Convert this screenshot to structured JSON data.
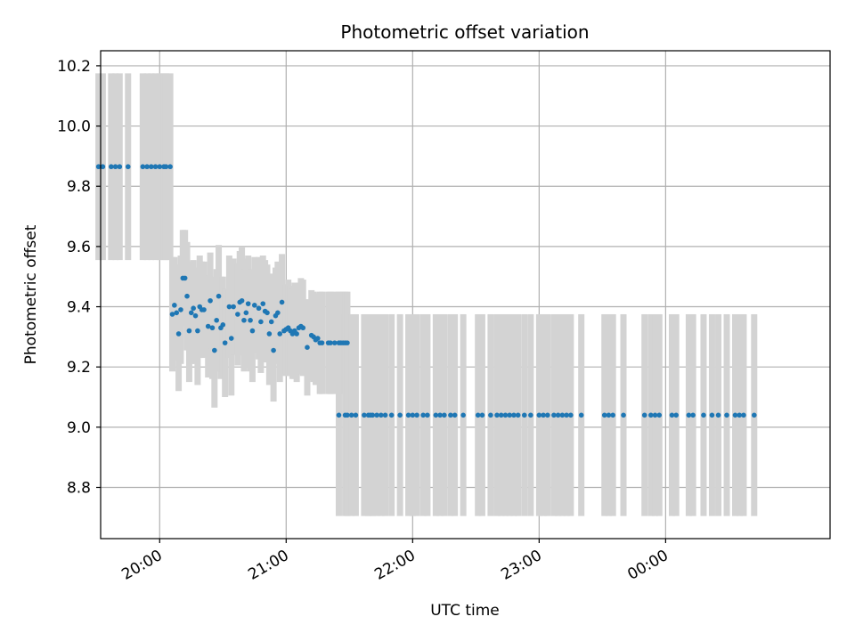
{
  "chart_data": {
    "type": "scatter",
    "title": "Photometric offset variation",
    "xlabel": "UTC time",
    "ylabel": "Photometric offset",
    "x_unit": "UTC time (h:mm)",
    "x_ticks": [
      "20:00",
      "21:00",
      "22:00",
      "23:00",
      "00:00"
    ],
    "y_ticks": [
      "8.8",
      "9.0",
      "9.2",
      "9.4",
      "9.6",
      "9.8",
      "10.0",
      "10.2"
    ],
    "xlim": [
      "19:32",
      "25:18"
    ],
    "ylim": [
      8.63,
      10.25
    ],
    "grid": true,
    "colors": {
      "marker": "#1f77b4",
      "errorbar": "#d3d3d3",
      "grid": "#b0b0b0"
    },
    "points": [
      {
        "x": "19:31",
        "y": 9.865,
        "err": 0.31
      },
      {
        "x": "19:33",
        "y": 9.865,
        "err": 0.31
      },
      {
        "x": "19:37",
        "y": 9.865,
        "err": 0.31
      },
      {
        "x": "19:39",
        "y": 9.865,
        "err": 0.31
      },
      {
        "x": "19:41",
        "y": 9.865,
        "err": 0.31
      },
      {
        "x": "19:45",
        "y": 9.865,
        "err": 0.31
      },
      {
        "x": "19:52",
        "y": 9.865,
        "err": 0.31
      },
      {
        "x": "19:54",
        "y": 9.865,
        "err": 0.31
      },
      {
        "x": "19:56",
        "y": 9.865,
        "err": 0.31
      },
      {
        "x": "19:58",
        "y": 9.865,
        "err": 0.31
      },
      {
        "x": "20:00",
        "y": 9.865,
        "err": 0.31
      },
      {
        "x": "20:02",
        "y": 9.865,
        "err": 0.31
      },
      {
        "x": "20:03",
        "y": 9.865,
        "err": 0.31
      },
      {
        "x": "20:05",
        "y": 9.865,
        "err": 0.31
      },
      {
        "x": "20:06",
        "y": 9.375,
        "err": 0.19
      },
      {
        "x": "20:07",
        "y": 9.405,
        "err": 0.16
      },
      {
        "x": "20:08",
        "y": 9.38,
        "err": 0.16
      },
      {
        "x": "20:09",
        "y": 9.31,
        "err": 0.19
      },
      {
        "x": "20:10",
        "y": 9.39,
        "err": 0.18
      },
      {
        "x": "20:11",
        "y": 9.495,
        "err": 0.16
      },
      {
        "x": "20:12",
        "y": 9.495,
        "err": 0.16
      },
      {
        "x": "20:13",
        "y": 9.435,
        "err": 0.18
      },
      {
        "x": "20:14",
        "y": 9.32,
        "err": 0.17
      },
      {
        "x": "20:15",
        "y": 9.38,
        "err": 0.17
      },
      {
        "x": "20:16",
        "y": 9.395,
        "err": 0.16
      },
      {
        "x": "20:17",
        "y": 9.37,
        "err": 0.16
      },
      {
        "x": "20:18",
        "y": 9.32,
        "err": 0.18
      },
      {
        "x": "20:19",
        "y": 9.4,
        "err": 0.17
      },
      {
        "x": "20:20",
        "y": 9.39,
        "err": 0.16
      },
      {
        "x": "20:21",
        "y": 9.39,
        "err": 0.16
      },
      {
        "x": "20:23",
        "y": 9.335,
        "err": 0.17
      },
      {
        "x": "20:24",
        "y": 9.42,
        "err": 0.16
      },
      {
        "x": "20:25",
        "y": 9.33,
        "err": 0.17
      },
      {
        "x": "20:26",
        "y": 9.255,
        "err": 0.19
      },
      {
        "x": "20:27",
        "y": 9.355,
        "err": 0.17
      },
      {
        "x": "20:28",
        "y": 9.435,
        "err": 0.17
      },
      {
        "x": "20:29",
        "y": 9.33,
        "err": 0.17
      },
      {
        "x": "20:30",
        "y": 9.34,
        "err": 0.16
      },
      {
        "x": "20:31",
        "y": 9.28,
        "err": 0.18
      },
      {
        "x": "20:33",
        "y": 9.4,
        "err": 0.17
      },
      {
        "x": "20:34",
        "y": 9.295,
        "err": 0.19
      },
      {
        "x": "20:35",
        "y": 9.4,
        "err": 0.16
      },
      {
        "x": "20:37",
        "y": 9.375,
        "err": 0.17
      },
      {
        "x": "20:38",
        "y": 9.415,
        "err": 0.17
      },
      {
        "x": "20:39",
        "y": 9.42,
        "err": 0.18
      },
      {
        "x": "20:40",
        "y": 9.355,
        "err": 0.17
      },
      {
        "x": "20:41",
        "y": 9.38,
        "err": 0.18
      },
      {
        "x": "20:42",
        "y": 9.41,
        "err": 0.16
      },
      {
        "x": "20:43",
        "y": 9.355,
        "err": 0.17
      },
      {
        "x": "20:44",
        "y": 9.32,
        "err": 0.17
      },
      {
        "x": "20:45",
        "y": 9.405,
        "err": 0.16
      },
      {
        "x": "20:47",
        "y": 9.395,
        "err": 0.17
      },
      {
        "x": "20:48",
        "y": 9.35,
        "err": 0.17
      },
      {
        "x": "20:49",
        "y": 9.41,
        "err": 0.16
      },
      {
        "x": "20:50",
        "y": 9.385,
        "err": 0.17
      },
      {
        "x": "20:51",
        "y": 9.38,
        "err": 0.16
      },
      {
        "x": "20:52",
        "y": 9.31,
        "err": 0.17
      },
      {
        "x": "20:53",
        "y": 9.35,
        "err": 0.16
      },
      {
        "x": "20:54",
        "y": 9.255,
        "err": 0.17
      },
      {
        "x": "20:55",
        "y": 9.37,
        "err": 0.16
      },
      {
        "x": "20:56",
        "y": 9.38,
        "err": 0.17
      },
      {
        "x": "20:57",
        "y": 9.31,
        "err": 0.16
      },
      {
        "x": "20:58",
        "y": 9.415,
        "err": 0.16
      },
      {
        "x": "20:59",
        "y": 9.32,
        "err": 0.15
      },
      {
        "x": "21:00",
        "y": 9.325,
        "err": 0.15
      },
      {
        "x": "21:01",
        "y": 9.33,
        "err": 0.16
      },
      {
        "x": "21:02",
        "y": 9.32,
        "err": 0.15
      },
      {
        "x": "21:03",
        "y": 9.31,
        "err": 0.15
      },
      {
        "x": "21:04",
        "y": 9.32,
        "err": 0.16
      },
      {
        "x": "21:05",
        "y": 9.31,
        "err": 0.16
      },
      {
        "x": "21:06",
        "y": 9.33,
        "err": 0.15
      },
      {
        "x": "21:07",
        "y": 9.335,
        "err": 0.16
      },
      {
        "x": "21:08",
        "y": 9.33,
        "err": 0.16
      },
      {
        "x": "21:10",
        "y": 9.265,
        "err": 0.16
      },
      {
        "x": "21:12",
        "y": 9.305,
        "err": 0.15
      },
      {
        "x": "21:13",
        "y": 9.3,
        "err": 0.15
      },
      {
        "x": "21:14",
        "y": 9.29,
        "err": 0.15
      },
      {
        "x": "21:15",
        "y": 9.295,
        "err": 0.15
      },
      {
        "x": "21:16",
        "y": 9.28,
        "err": 0.17
      },
      {
        "x": "21:17",
        "y": 9.28,
        "err": 0.17
      },
      {
        "x": "21:20",
        "y": 9.28,
        "err": 0.17
      },
      {
        "x": "21:21",
        "y": 9.28,
        "err": 0.17
      },
      {
        "x": "21:23",
        "y": 9.28,
        "err": 0.17
      },
      {
        "x": "21:25",
        "y": 9.28,
        "err": 0.17
      },
      {
        "x": "21:26",
        "y": 9.28,
        "err": 0.17
      },
      {
        "x": "21:27",
        "y": 9.28,
        "err": 0.17
      },
      {
        "x": "21:28",
        "y": 9.28,
        "err": 0.17
      },
      {
        "x": "21:29",
        "y": 9.28,
        "err": 0.17
      },
      {
        "x": "21:25",
        "y": 9.04,
        "err": 0.335
      },
      {
        "x": "21:28",
        "y": 9.04,
        "err": 0.335
      },
      {
        "x": "21:29",
        "y": 9.04,
        "err": 0.335
      },
      {
        "x": "21:31",
        "y": 9.04,
        "err": 0.335
      },
      {
        "x": "21:33",
        "y": 9.04,
        "err": 0.335
      },
      {
        "x": "21:37",
        "y": 9.04,
        "err": 0.335
      },
      {
        "x": "21:39",
        "y": 9.04,
        "err": 0.335
      },
      {
        "x": "21:40",
        "y": 9.04,
        "err": 0.335
      },
      {
        "x": "21:41",
        "y": 9.04,
        "err": 0.335
      },
      {
        "x": "21:43",
        "y": 9.04,
        "err": 0.335
      },
      {
        "x": "21:45",
        "y": 9.04,
        "err": 0.335
      },
      {
        "x": "21:47",
        "y": 9.04,
        "err": 0.335
      },
      {
        "x": "21:50",
        "y": 9.04,
        "err": 0.335
      },
      {
        "x": "21:54",
        "y": 9.04,
        "err": 0.335
      },
      {
        "x": "21:58",
        "y": 9.04,
        "err": 0.335
      },
      {
        "x": "22:00",
        "y": 9.04,
        "err": 0.335
      },
      {
        "x": "22:02",
        "y": 9.04,
        "err": 0.335
      },
      {
        "x": "22:05",
        "y": 9.04,
        "err": 0.335
      },
      {
        "x": "22:07",
        "y": 9.04,
        "err": 0.335
      },
      {
        "x": "22:11",
        "y": 9.04,
        "err": 0.335
      },
      {
        "x": "22:13",
        "y": 9.04,
        "err": 0.335
      },
      {
        "x": "22:15",
        "y": 9.04,
        "err": 0.335
      },
      {
        "x": "22:18",
        "y": 9.04,
        "err": 0.335
      },
      {
        "x": "22:20",
        "y": 9.04,
        "err": 0.335
      },
      {
        "x": "22:24",
        "y": 9.04,
        "err": 0.335
      },
      {
        "x": "22:31",
        "y": 9.04,
        "err": 0.335
      },
      {
        "x": "22:33",
        "y": 9.04,
        "err": 0.335
      },
      {
        "x": "22:37",
        "y": 9.04,
        "err": 0.335
      },
      {
        "x": "22:40",
        "y": 9.04,
        "err": 0.335
      },
      {
        "x": "22:42",
        "y": 9.04,
        "err": 0.335
      },
      {
        "x": "22:44",
        "y": 9.04,
        "err": 0.335
      },
      {
        "x": "22:46",
        "y": 9.04,
        "err": 0.335
      },
      {
        "x": "22:48",
        "y": 9.04,
        "err": 0.335
      },
      {
        "x": "22:50",
        "y": 9.04,
        "err": 0.335
      },
      {
        "x": "22:53",
        "y": 9.04,
        "err": 0.335
      },
      {
        "x": "22:56",
        "y": 9.04,
        "err": 0.335
      },
      {
        "x": "23:00",
        "y": 9.04,
        "err": 0.335
      },
      {
        "x": "23:02",
        "y": 9.04,
        "err": 0.335
      },
      {
        "x": "23:04",
        "y": 9.04,
        "err": 0.335
      },
      {
        "x": "23:07",
        "y": 9.04,
        "err": 0.335
      },
      {
        "x": "23:09",
        "y": 9.04,
        "err": 0.335
      },
      {
        "x": "23:11",
        "y": 9.04,
        "err": 0.335
      },
      {
        "x": "23:13",
        "y": 9.04,
        "err": 0.335
      },
      {
        "x": "23:15",
        "y": 9.04,
        "err": 0.335
      },
      {
        "x": "23:20",
        "y": 9.04,
        "err": 0.335
      },
      {
        "x": "23:31",
        "y": 9.04,
        "err": 0.335
      },
      {
        "x": "23:33",
        "y": 9.04,
        "err": 0.335
      },
      {
        "x": "23:35",
        "y": 9.04,
        "err": 0.335
      },
      {
        "x": "23:40",
        "y": 9.04,
        "err": 0.335
      },
      {
        "x": "23:50",
        "y": 9.04,
        "err": 0.335
      },
      {
        "x": "23:53",
        "y": 9.04,
        "err": 0.335
      },
      {
        "x": "23:55",
        "y": 9.04,
        "err": 0.335
      },
      {
        "x": "23:57",
        "y": 9.04,
        "err": 0.335
      },
      {
        "x": "24:03",
        "y": 9.04,
        "err": 0.335
      },
      {
        "x": "24:05",
        "y": 9.04,
        "err": 0.335
      },
      {
        "x": "24:11",
        "y": 9.04,
        "err": 0.335
      },
      {
        "x": "24:13",
        "y": 9.04,
        "err": 0.335
      },
      {
        "x": "24:18",
        "y": 9.04,
        "err": 0.335
      },
      {
        "x": "24:22",
        "y": 9.04,
        "err": 0.335
      },
      {
        "x": "24:25",
        "y": 9.04,
        "err": 0.335
      },
      {
        "x": "24:29",
        "y": 9.04,
        "err": 0.335
      },
      {
        "x": "24:33",
        "y": 9.04,
        "err": 0.335
      },
      {
        "x": "24:35",
        "y": 9.04,
        "err": 0.335
      },
      {
        "x": "24:37",
        "y": 9.04,
        "err": 0.335
      },
      {
        "x": "24:42",
        "y": 9.04,
        "err": 0.335
      }
    ]
  }
}
